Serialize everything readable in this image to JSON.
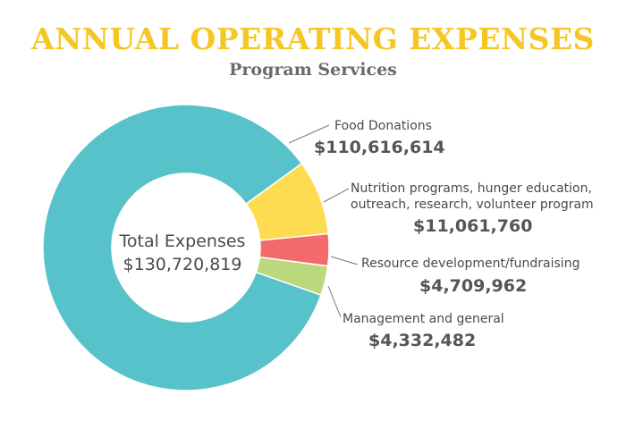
{
  "chart_data": {
    "type": "pie",
    "donut": true,
    "title": "ANNUAL OPERATING EXPENSES",
    "subtitle": "Program Services",
    "center_label": "Total Expenses",
    "center_value": "$130,720,819",
    "slices": [
      {
        "label": "Food Donations",
        "value": 110616614,
        "value_label": "$110,616,614",
        "color": "#58c2cb"
      },
      {
        "label_lines": [
          "Nutrition programs, hunger education,",
          "outreach, research, volunteer program"
        ],
        "value": 11061760,
        "value_label": "$11,061,760",
        "color": "#fedc52"
      },
      {
        "label": "Resource development/fundraising",
        "value": 4709962,
        "value_label": "$4,709,962",
        "color": "#f26a6a"
      },
      {
        "label": "Management and general",
        "value": 4332482,
        "value_label": "$4,332,482",
        "color": "#b9d97c"
      }
    ]
  }
}
